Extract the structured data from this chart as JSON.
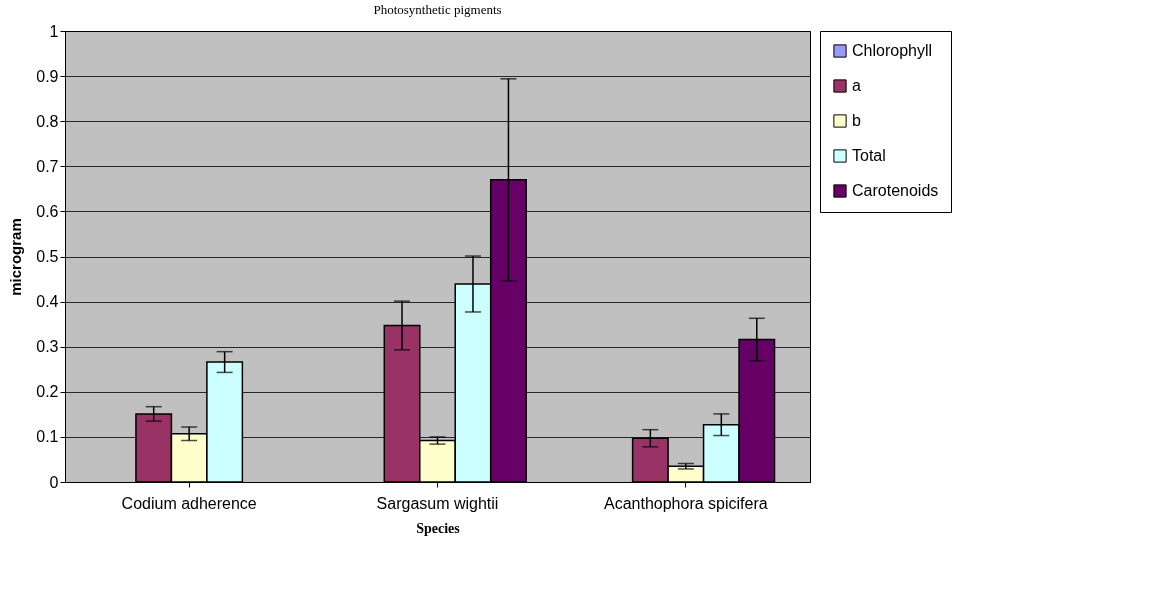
{
  "chart_data": {
    "type": "bar",
    "title": "Photosynthetic pigments",
    "xlabel": "Species",
    "ylabel": "microgram",
    "categories": [
      "Codium adherence",
      "Sargasum wightii",
      "Acanthophora spicifera"
    ],
    "series": [
      {
        "name": "Chlorophyll",
        "color": "#9999ff",
        "values": [
          null,
          null,
          null
        ]
      },
      {
        "name": "a",
        "color": "#993366",
        "values": [
          0.151,
          0.347,
          0.097
        ],
        "errors": [
          0.016,
          0.054,
          0.019
        ]
      },
      {
        "name": "b",
        "color": "#ffffcc",
        "values": [
          0.107,
          0.092,
          0.035
        ],
        "errors": [
          0.015,
          0.008,
          0.006
        ]
      },
      {
        "name": "Total",
        "color": "#ccffff",
        "values": [
          0.266,
          0.439,
          0.127
        ],
        "errors": [
          0.023,
          0.062,
          0.024
        ]
      },
      {
        "name": "Carotenoids",
        "color": "#660066",
        "values": [
          null,
          0.67,
          0.316
        ],
        "errors": [
          null,
          0.224,
          0.047
        ]
      }
    ],
    "ylim": [
      0,
      1
    ],
    "yticks": [
      0,
      0.1,
      0.2,
      0.3,
      0.4,
      0.5,
      0.6,
      0.7,
      0.8,
      0.9,
      1
    ],
    "grid": "y",
    "legend": "right"
  }
}
